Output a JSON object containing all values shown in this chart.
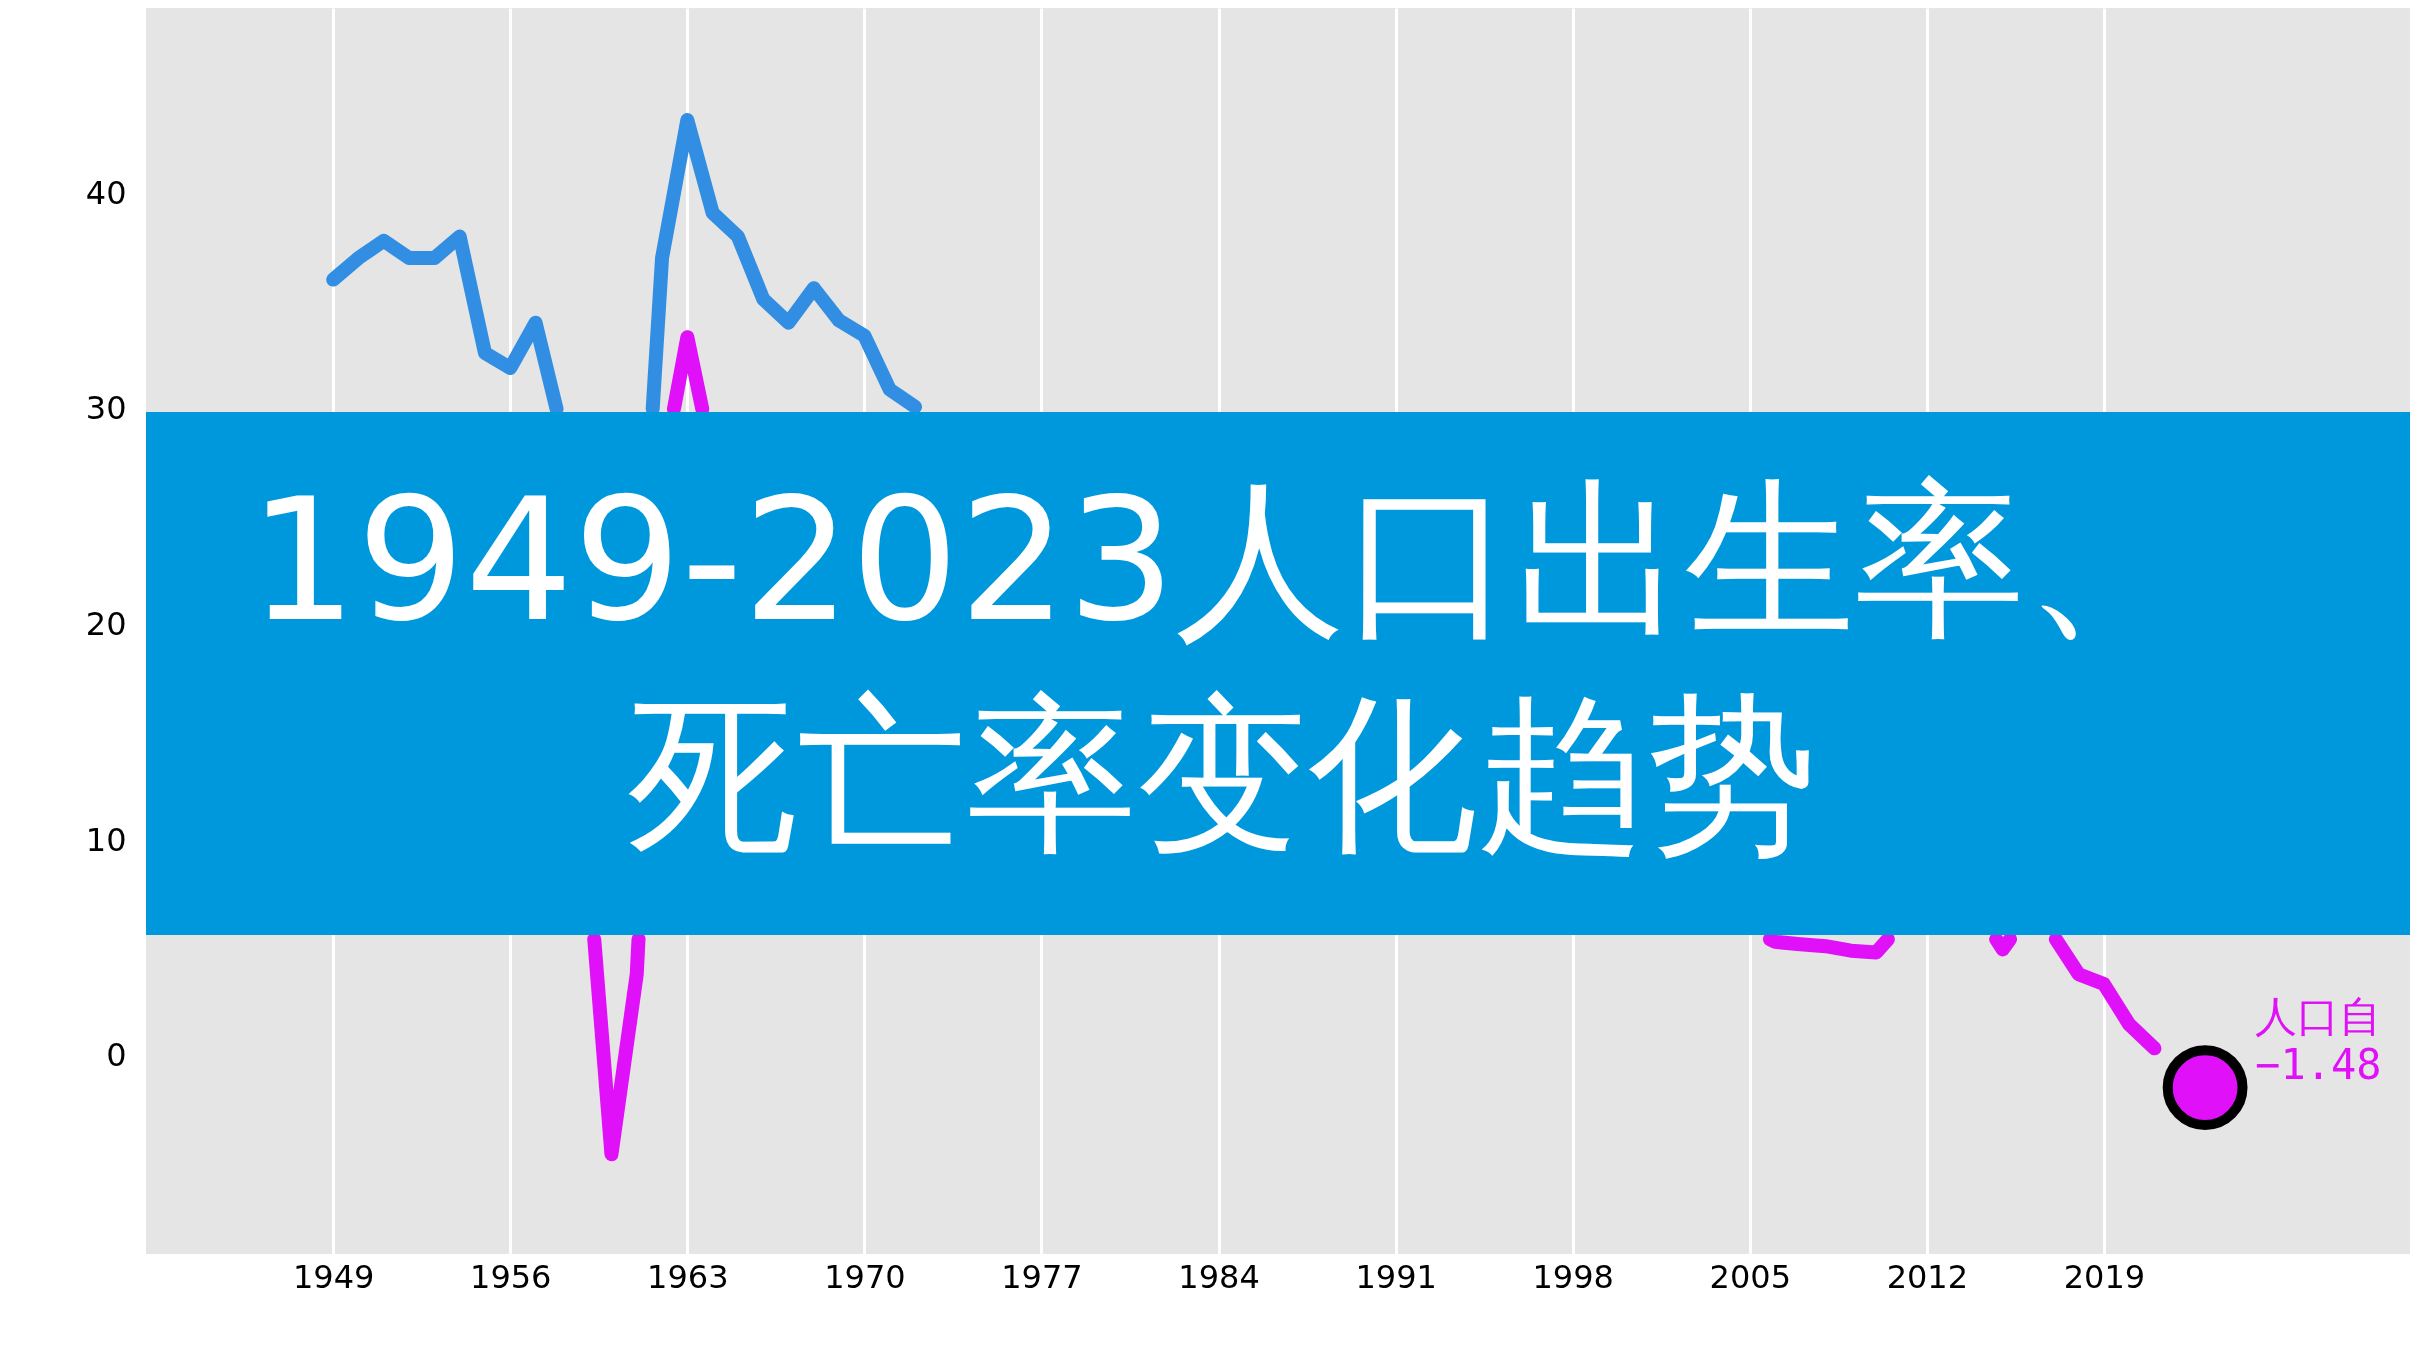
{
  "chart_data": {
    "type": "line",
    "title": "1949-2023人口出生率、死亡率变化趋势",
    "series": [
      {
        "color": "#318ee2",
        "x": [
          1949,
          1950,
          1951,
          1952,
          1953,
          1954,
          1955,
          1956,
          1957,
          1957.83,
          1960,
          1961.63,
          1962,
          1963,
          1964,
          1965,
          1966,
          1967,
          1968,
          1969,
          1970,
          1971,
          1972
        ],
        "values": [
          36.0,
          37.0,
          37.8,
          37.0,
          37.0,
          38.0,
          32.6,
          31.9,
          34.0,
          30.0,
          null,
          30.0,
          37.0,
          43.4,
          39.1,
          38.0,
          35.1,
          34.0,
          35.6,
          34.1,
          33.4,
          30.9,
          30.1
        ]
      },
      {
        "color": "#e010f8",
        "x": [
          1959.32,
          1960,
          1961,
          1961.07,
          1962,
          1962.47,
          1963,
          1963.59,
          1990,
          2005.8,
          2006,
          2007,
          2008,
          2009,
          2010,
          2010.46,
          2012,
          2014.74,
          2015,
          2015.29,
          2016,
          2017.1,
          2018,
          2019,
          2020,
          2021
        ],
        "values": [
          5.4,
          -4.57,
          3.78,
          5.4,
          null,
          30.0,
          33.33,
          30.0,
          null,
          5.4,
          5.28,
          5.17,
          5.08,
          4.87,
          4.79,
          5.4,
          null,
          5.4,
          4.93,
          5.4,
          null,
          5.4,
          3.78,
          3.32,
          1.45,
          0.34
        ]
      },
      {
        "type": "scatter",
        "color": "#e010f8",
        "x": [
          2023
        ],
        "values": [
          -1.48
        ]
      }
    ],
    "annotations": [
      {
        "text": "人口自\n−1.48",
        "x": 2023,
        "y": -1.48
      }
    ],
    "xlim": [
      1941.6,
      2031.1
    ],
    "ylim": [
      -9.2,
      48.6
    ],
    "xticks": [
      1949,
      1956,
      1963,
      1970,
      1977,
      1984,
      1991,
      1998,
      2005,
      2012,
      2019
    ],
    "yticks": [
      0,
      10,
      20,
      30,
      40
    ],
    "grid": "x"
  }
}
